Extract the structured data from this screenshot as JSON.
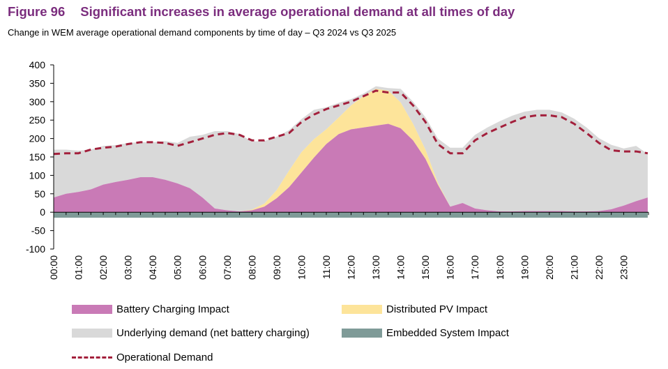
{
  "figure": {
    "number": "Figure 96",
    "title": "Significant increases in average operational demand at all times of day",
    "subtitle": "Change in WEM average operational demand components by time of day – Q3 2024 vs Q3 2025"
  },
  "colors": {
    "underlying": "#d9d9d9",
    "pv": "#fde49a",
    "battery": "#c97ab6",
    "embedded": "#7f9b98",
    "operational": "#a3203c",
    "axis": "#000000"
  },
  "chart_data": {
    "type": "area",
    "title": "Change in WEM average operational demand components by time of day – Q3 2024 vs Q3 2025",
    "xlabel": "",
    "ylabel": "",
    "ylim": [
      -100,
      400
    ],
    "yticks": [
      "400",
      "350",
      "300",
      "250",
      "200",
      "150",
      "100",
      "50",
      "0",
      "-50",
      "-100"
    ],
    "ytick_values": [
      400,
      350,
      300,
      250,
      200,
      150,
      100,
      50,
      0,
      -50,
      -100
    ],
    "x_hours": [
      0,
      0.5,
      1,
      1.5,
      2,
      2.5,
      3,
      3.5,
      4,
      4.5,
      5,
      5.5,
      6,
      6.5,
      7,
      7.5,
      8,
      8.5,
      9,
      9.5,
      10,
      10.5,
      11,
      11.5,
      12,
      12.5,
      13,
      13.5,
      14,
      14.5,
      15,
      15.5,
      16,
      16.5,
      17,
      17.5,
      18,
      18.5,
      19,
      19.5,
      20,
      20.5,
      21,
      21.5,
      22,
      22.5,
      23,
      23.5,
      23.97
    ],
    "xtick_labels": [
      "00:00",
      "01:00",
      "02:00",
      "03:00",
      "04:00",
      "05:00",
      "06:00",
      "07:00",
      "08:00",
      "09:00",
      "10:00",
      "11:00",
      "12:00",
      "13:00",
      "14:00",
      "15:00",
      "16:00",
      "17:00",
      "18:00",
      "19:00",
      "20:00",
      "21:00",
      "22:00",
      "23:00"
    ],
    "series": [
      {
        "name": "Battery Charging Impact",
        "color_key": "battery",
        "values": [
          40,
          50,
          55,
          62,
          75,
          82,
          88,
          95,
          95,
          88,
          78,
          65,
          40,
          10,
          5,
          2,
          5,
          15,
          38,
          68,
          108,
          148,
          185,
          212,
          225,
          230,
          235,
          240,
          228,
          195,
          145,
          75,
          15,
          25,
          10,
          5,
          2,
          2,
          3,
          3,
          3,
          3,
          2,
          2,
          3,
          8,
          18,
          30,
          40
        ]
      },
      {
        "name": "Distributed PV Impact",
        "color_key": "pv",
        "values": [
          0,
          0,
          0,
          0,
          0,
          0,
          0,
          0,
          0,
          0,
          0,
          0,
          0,
          0,
          0,
          0,
          2,
          8,
          22,
          45,
          55,
          50,
          40,
          45,
          65,
          85,
          100,
          90,
          70,
          45,
          25,
          5,
          0,
          0,
          0,
          0,
          0,
          0,
          0,
          0,
          0,
          0,
          0,
          0,
          0,
          0,
          0,
          0,
          0
        ]
      },
      {
        "name": "Underlying demand (net battery charging)",
        "color_key": "underlying",
        "values": [
          130,
          120,
          112,
          108,
          105,
          100,
          100,
          95,
          95,
          105,
          110,
          140,
          170,
          210,
          215,
          210,
          185,
          170,
          145,
          110,
          90,
          80,
          60,
          40,
          17,
          7,
          7,
          7,
          37,
          60,
          88,
          120,
          160,
          150,
          200,
          225,
          245,
          260,
          270,
          275,
          275,
          268,
          252,
          228,
          198,
          175,
          155,
          150,
          118
        ]
      },
      {
        "name": "Embedded System Impact",
        "color_key": "embedded",
        "values": [
          -15,
          -15,
          -15,
          -15,
          -15,
          -15,
          -15,
          -15,
          -15,
          -15,
          -15,
          -15,
          -15,
          -15,
          -15,
          -15,
          -15,
          -15,
          -15,
          -15,
          -15,
          -15,
          -15,
          -15,
          -15,
          -15,
          -15,
          -15,
          -15,
          -15,
          -15,
          -15,
          -15,
          -15,
          -15,
          -15,
          -15,
          -15,
          -15,
          -15,
          -15,
          -15,
          -15,
          -15,
          -15,
          -15,
          -15,
          -15,
          -15
        ]
      },
      {
        "name": "Operational Demand",
        "color_key": "operational",
        "style": "dashed-line",
        "values": [
          158,
          160,
          160,
          170,
          175,
          178,
          185,
          190,
          190,
          188,
          180,
          190,
          200,
          210,
          215,
          210,
          195,
          195,
          205,
          215,
          245,
          265,
          280,
          290,
          300,
          315,
          330,
          325,
          325,
          290,
          245,
          185,
          160,
          160,
          195,
          215,
          230,
          245,
          258,
          263,
          263,
          258,
          240,
          215,
          188,
          168,
          165,
          165,
          160
        ]
      }
    ],
    "legend": [
      {
        "label": "Battery Charging Impact",
        "color_key": "battery",
        "style": "area"
      },
      {
        "label": "Distributed PV Impact",
        "color_key": "pv",
        "style": "area"
      },
      {
        "label": "Underlying demand (net battery charging)",
        "color_key": "underlying",
        "style": "area"
      },
      {
        "label": "Embedded System Impact",
        "color_key": "embedded",
        "style": "area"
      },
      {
        "label": "Operational Demand",
        "color_key": "operational",
        "style": "dashed-line"
      }
    ],
    "legend_position": "bottom"
  }
}
